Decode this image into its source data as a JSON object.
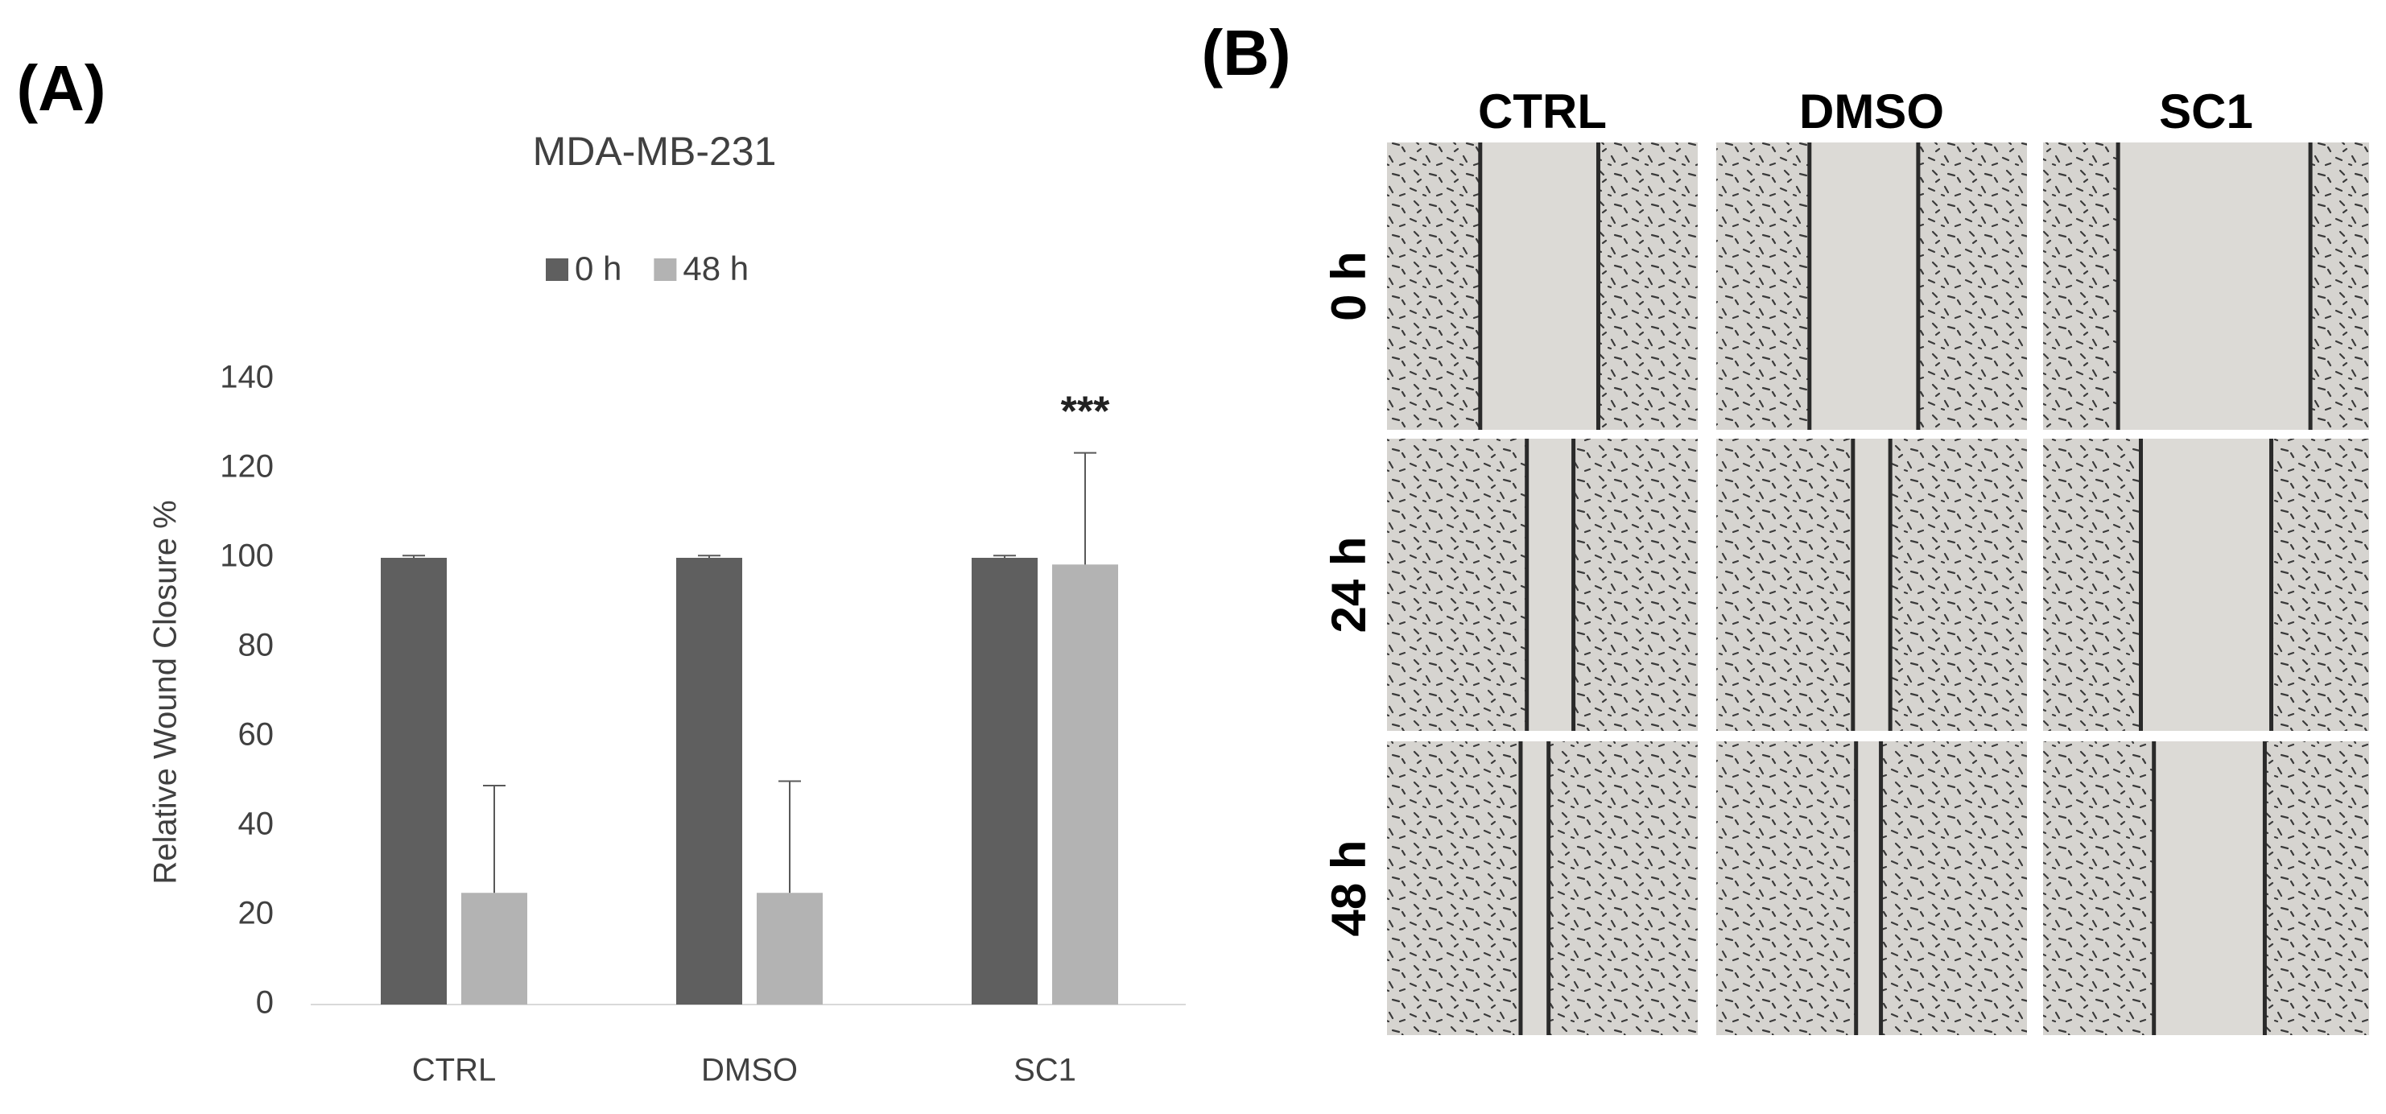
{
  "panel_labels": [
    "(A)",
    "(B)"
  ],
  "chart_data": {
    "type": "bar",
    "title": "MDA-MB-231",
    "ylabel": "Relative Wound Closure %",
    "categories": [
      "CTRL",
      "DMSO",
      "SC1"
    ],
    "series": [
      {
        "name": "0 h",
        "color": "#5f5f5f",
        "values": [
          100,
          100,
          100
        ],
        "errors": [
          0.5,
          0.5,
          0.5
        ]
      },
      {
        "name": "48 h",
        "color": "#b3b3b3",
        "values": [
          25,
          25,
          98.5
        ],
        "errors": [
          24,
          25,
          25
        ]
      }
    ],
    "annotations": [
      {
        "text": "***",
        "category": 2,
        "series": 1
      }
    ],
    "ylim": [
      0,
      140
    ],
    "yticks": [
      0,
      20,
      40,
      60,
      80,
      100,
      120,
      140
    ],
    "grid": false,
    "legend": "top"
  },
  "micrographs": {
    "columns": [
      "CTRL",
      "DMSO",
      "SC1"
    ],
    "rows": [
      "0 h",
      "24 h",
      "48 h"
    ]
  }
}
